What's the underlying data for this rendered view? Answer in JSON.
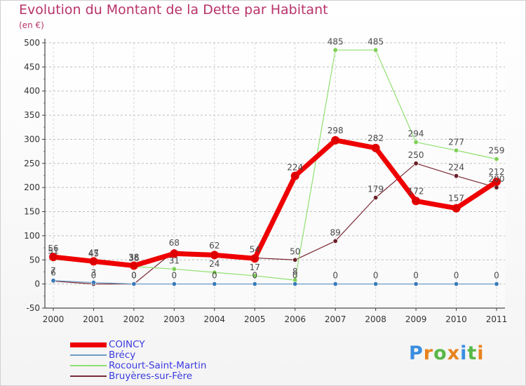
{
  "header": {
    "title": "Evolution du Montant de la Dette par Habitant",
    "unit": "(en €)"
  },
  "brand": {
    "letters": [
      "P",
      "r",
      "o",
      "x",
      "i",
      "t",
      "i"
    ],
    "colors": [
      "#3a8ee0",
      "#e8831e",
      "#58b848",
      "#e8831e",
      "#3a8ee0",
      "#58b848",
      "#e8831e"
    ]
  },
  "chart_data": {
    "type": "line",
    "title": "Evolution du Montant de la Dette par Habitant",
    "ylabel": "(en €)",
    "xlabel": "",
    "x": [
      "2000",
      "2001",
      "2002",
      "2003",
      "2004",
      "2005",
      "2006",
      "2007",
      "2008",
      "2009",
      "2010",
      "2011"
    ],
    "ylim": [
      -50,
      500
    ],
    "yticks": [
      -50,
      0,
      50,
      100,
      150,
      200,
      250,
      300,
      350,
      400,
      450,
      500
    ],
    "grid": true,
    "legend_position": "bottom-left",
    "series": [
      {
        "name": "Bruyères-sur-Fère",
        "color": "#7a2a35",
        "point_color": "#6a1f28",
        "width": 1.2,
        "values": [
          6,
          0,
          0,
          68,
          62,
          54,
          50,
          89,
          179,
          250,
          224,
          200
        ],
        "labels": [
          "6",
          "0",
          "0",
          "68",
          "62",
          "54",
          "50",
          "89",
          "179",
          "250",
          "224",
          "200"
        ],
        "label_dx": [
          0,
          0,
          0,
          0,
          0,
          0,
          0,
          0,
          0,
          0,
          0,
          0
        ],
        "label_dy": [
          -8,
          -8,
          -8,
          -8,
          -8,
          -8,
          -8,
          -8,
          -8,
          -8,
          -8,
          -8
        ],
        "show_label": [
          true,
          true,
          true,
          true,
          true,
          true,
          true,
          true,
          true,
          true,
          true,
          true
        ]
      },
      {
        "name": "Rocourt-Saint-Martin",
        "color": "#90e070",
        "point_color": "#7ed054",
        "width": 1.2,
        "values": [
          51,
          45,
          36,
          31,
          24,
          17,
          8,
          485,
          485,
          294,
          277,
          259
        ],
        "labels": [
          "51",
          "45",
          "36",
          "31",
          "24",
          "17",
          "8",
          "485",
          "485",
          "294",
          "277",
          "259"
        ],
        "label_dx": [
          0,
          0,
          0,
          0,
          0,
          0,
          0,
          0,
          0,
          0,
          0,
          0
        ],
        "label_dy": [
          -8,
          -8,
          -8,
          -8,
          -8,
          -8,
          -8,
          -8,
          -8,
          -8,
          -8,
          -8
        ],
        "show_label": [
          true,
          true,
          true,
          true,
          true,
          true,
          true,
          true,
          true,
          true,
          true,
          true
        ]
      },
      {
        "name": "Brécy",
        "color": "#6a9ec8",
        "point_color": "#3a7ab8",
        "width": 1.2,
        "values": [
          7,
          3,
          0,
          0,
          0,
          0,
          0,
          0,
          0,
          0,
          0,
          0
        ],
        "labels": [
          "7",
          "3",
          "0",
          "0",
          "0",
          "0",
          "0",
          "0",
          "0",
          "0",
          "0",
          "0"
        ],
        "label_dx": [
          0,
          0,
          0,
          0,
          0,
          0,
          0,
          0,
          0,
          0,
          0,
          0
        ],
        "label_dy": [
          -10,
          -10,
          -8,
          -8,
          -8,
          -8,
          -8,
          -8,
          -8,
          -8,
          -8,
          -8
        ],
        "show_label": [
          true,
          true,
          true,
          true,
          true,
          true,
          true,
          true,
          true,
          true,
          true,
          true
        ]
      },
      {
        "name": "COINCY",
        "color": "#ee0000",
        "point_color": "#dd0000",
        "width": 7,
        "values": [
          56,
          47,
          38,
          63,
          60,
          53,
          224,
          298,
          282,
          172,
          157,
          212
        ],
        "labels": [
          "56",
          "47",
          "38",
          "63",
          "60",
          "53",
          "224",
          "298",
          "282",
          "172",
          "157",
          "212"
        ],
        "label_dx": [
          0,
          0,
          0,
          0,
          0,
          0,
          0,
          0,
          0,
          0,
          0,
          0
        ],
        "label_dy": [
          -8,
          -8,
          -8,
          -8,
          -8,
          -8,
          -8,
          -10,
          -10,
          -10,
          -10,
          -10
        ],
        "show_label": [
          true,
          true,
          true,
          false,
          false,
          false,
          true,
          true,
          true,
          true,
          true,
          true
        ]
      }
    ],
    "legend": [
      {
        "name": "COINCY",
        "color": "#ee0000",
        "width": 7
      },
      {
        "name": "Brécy",
        "color": "#6a9ec8",
        "width": 2
      },
      {
        "name": "Rocourt-Saint-Martin",
        "color": "#90e070",
        "width": 2
      },
      {
        "name": "Bruyères-sur-Fère",
        "color": "#7a2a35",
        "width": 2
      }
    ]
  }
}
